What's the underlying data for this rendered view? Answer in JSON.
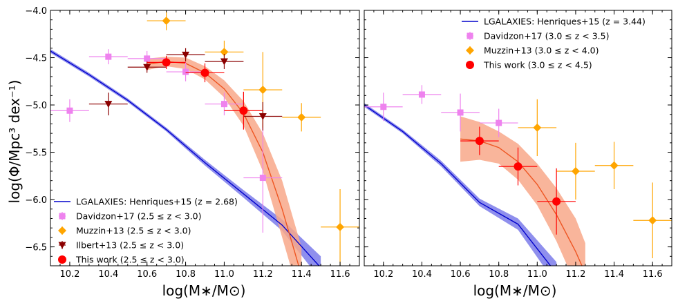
{
  "chart_data": {
    "type": "scatter",
    "ylabel": "log(Φ/Mpc³ dex⁻¹)",
    "panels": [
      {
        "name": "left",
        "xlabel": "log(M∗/M⊙)",
        "xlim": [
          10.1,
          11.7
        ],
        "ylim": [
          -6.7,
          -4.0
        ],
        "xticks": [
          10.2,
          10.4,
          10.6,
          10.8,
          11.0,
          11.2,
          11.4,
          11.6
        ],
        "xtick_labels": [
          "10.2",
          "10.4",
          "10.6",
          "10.8",
          "11.0",
          "11.2",
          "11.4",
          "11.6"
        ],
        "yticks": [
          -4.0,
          -4.5,
          -5.0,
          -5.5,
          -6.0,
          -6.5
        ],
        "ytick_labels": [
          "−4.0",
          "−4.5",
          "−5.0",
          "−5.5",
          "−6.0",
          "−6.5"
        ],
        "legend_position": "bottom-left",
        "model": {
          "name": "LGALAXIES: Henriques+15 (z = 2.68)",
          "color": "#0000cc",
          "band_color": "#7b7bea",
          "x": [
            10.1,
            10.3,
            10.5,
            10.7,
            10.9,
            11.1,
            11.3,
            11.5
          ],
          "y": [
            -4.43,
            -4.68,
            -4.95,
            -5.26,
            -5.61,
            -5.94,
            -6.27,
            -6.72
          ],
          "lo": [
            -4.45,
            -4.7,
            -4.97,
            -5.28,
            -5.64,
            -5.98,
            -6.33,
            -6.85
          ],
          "hi": [
            -4.41,
            -4.66,
            -4.93,
            -5.24,
            -5.58,
            -5.9,
            -6.21,
            -6.6
          ]
        },
        "fit": {
          "color": "#ee5522",
          "band_color": "#f8a88a",
          "x": [
            10.6,
            10.7,
            10.8,
            10.9,
            11.0,
            11.1,
            11.2,
            11.3,
            11.35,
            11.4
          ],
          "y": [
            -4.57,
            -4.54,
            -4.56,
            -4.66,
            -4.83,
            -5.09,
            -5.5,
            -6.1,
            -6.45,
            -6.8
          ],
          "lo": [
            -4.63,
            -4.59,
            -4.62,
            -4.73,
            -4.92,
            -5.22,
            -5.7,
            -6.4,
            -6.75,
            -7.1
          ],
          "hi": [
            -4.51,
            -4.49,
            -4.5,
            -4.59,
            -4.74,
            -4.96,
            -5.3,
            -5.8,
            -6.15,
            -6.5
          ]
        },
        "series": [
          {
            "name": "Davidzon+17 (2.5 ≤ z < 3.0)",
            "marker": "square",
            "color": "#ee82ee",
            "points": [
              {
                "x": 10.2,
                "y": -5.06,
                "xerr": 0.1,
                "yerr": 0.12
              },
              {
                "x": 10.4,
                "y": -4.49,
                "xerr": 0.1,
                "yerr": 0.08
              },
              {
                "x": 10.6,
                "y": -4.51,
                "xerr": 0.1,
                "yerr": 0.08
              },
              {
                "x": 10.8,
                "y": -4.65,
                "xerr": 0.1,
                "yerr": 0.1
              },
              {
                "x": 11.0,
                "y": -4.99,
                "xerr": 0.1,
                "yerr": 0.12
              },
              {
                "x": 11.2,
                "y": -5.77,
                "xerr": 0.1,
                "yerr": 0.58
              }
            ]
          },
          {
            "name": "Muzzin+13 (2.5 ≤ z < 3.0)",
            "marker": "diamond",
            "color": "#ffa500",
            "points": [
              {
                "x": 10.7,
                "y": -4.11,
                "xerr": 0.1,
                "yerr": 0.1
              },
              {
                "x": 11.0,
                "y": -4.44,
                "xerr": 0.1,
                "yerr": 0.12
              },
              {
                "x": 11.2,
                "y": -4.84,
                "xerr": 0.1,
                "yerr": 0.4
              },
              {
                "x": 11.4,
                "y": -5.13,
                "xerr": 0.1,
                "yerr": 0.15
              },
              {
                "x": 11.6,
                "y": -6.29,
                "xerr": 0.1,
                "yerr": 0.4
              }
            ]
          },
          {
            "name": "Ilbert+13 (2.5 ≤ z < 3.0)",
            "marker": "triangle-down",
            "color": "#8b0000",
            "points": [
              {
                "x": 10.4,
                "y": -4.99,
                "xerr": 0.1,
                "yerr": 0.12
              },
              {
                "x": 10.6,
                "y": -4.6,
                "xerr": 0.1,
                "yerr": 0.06
              },
              {
                "x": 10.8,
                "y": -4.47,
                "xerr": 0.1,
                "yerr": 0.07
              },
              {
                "x": 11.0,
                "y": -4.54,
                "xerr": 0.1,
                "yerr": 0.08
              },
              {
                "x": 11.2,
                "y": -5.12,
                "xerr": 0.1,
                "yerr": 0.15
              }
            ]
          },
          {
            "name": "This work (2.5 ≤ z < 3.0)",
            "marker": "circle",
            "color": "#ff0000",
            "points": [
              {
                "x": 10.7,
                "y": -4.55,
                "xerr": 0.1,
                "yerr": 0.07
              },
              {
                "x": 10.9,
                "y": -4.66,
                "xerr": 0.1,
                "yerr": 0.1
              },
              {
                "x": 11.1,
                "y": -5.06,
                "xerr": 0.1,
                "yerr": 0.2
              }
            ]
          }
        ]
      },
      {
        "name": "right",
        "xlabel": "log(M∗/M⊙)",
        "xlim": [
          10.1,
          11.7
        ],
        "ylim": [
          -6.7,
          -4.0
        ],
        "xticks": [
          10.2,
          10.4,
          10.6,
          10.8,
          11.0,
          11.2,
          11.4,
          11.6
        ],
        "xtick_labels": [
          "10.2",
          "10.4",
          "10.6",
          "10.8",
          "11.0",
          "11.2",
          "11.4",
          "11.6"
        ],
        "yticks": [
          -4.0,
          -4.5,
          -5.0,
          -5.5,
          -6.0,
          -6.5
        ],
        "ytick_labels": [
          "",
          "",
          "",
          "",
          "",
          ""
        ],
        "legend_position": "top-right",
        "model": {
          "name": "LGALAXIES: Henriques+15 (z = 3.44)",
          "color": "#0000cc",
          "band_color": "#7b7bea",
          "x": [
            10.1,
            10.3,
            10.5,
            10.7,
            10.9,
            11.1
          ],
          "y": [
            -5.0,
            -5.28,
            -5.62,
            -6.03,
            -6.26,
            -6.78
          ],
          "lo": [
            -5.02,
            -5.3,
            -5.65,
            -6.07,
            -6.32,
            -6.9
          ],
          "hi": [
            -4.98,
            -5.26,
            -5.59,
            -5.99,
            -6.2,
            -6.66
          ]
        },
        "fit": {
          "color": "#ee5522",
          "band_color": "#f8a88a",
          "x": [
            10.6,
            10.7,
            10.8,
            10.9,
            11.0,
            11.1,
            11.2,
            11.25
          ],
          "y": [
            -5.36,
            -5.38,
            -5.45,
            -5.6,
            -5.84,
            -6.16,
            -6.55,
            -6.78
          ],
          "lo": [
            -5.6,
            -5.58,
            -5.62,
            -5.79,
            -6.06,
            -6.44,
            -6.9,
            -7.1
          ],
          "hi": [
            -5.12,
            -5.18,
            -5.28,
            -5.41,
            -5.62,
            -5.88,
            -6.2,
            -6.46
          ]
        },
        "series": [
          {
            "name": "Davidzon+17 (3.0 ≤ z < 3.5)",
            "marker": "square",
            "color": "#ee82ee",
            "points": [
              {
                "x": 10.2,
                "y": -5.02,
                "xerr": 0.1,
                "yerr": 0.15
              },
              {
                "x": 10.4,
                "y": -4.89,
                "xerr": 0.1,
                "yerr": 0.1
              },
              {
                "x": 10.6,
                "y": -5.08,
                "xerr": 0.1,
                "yerr": 0.2
              },
              {
                "x": 10.8,
                "y": -5.19,
                "xerr": 0.1,
                "yerr": 0.15
              }
            ]
          },
          {
            "name": "Muzzin+13 (3.0 ≤ z < 4.0)",
            "marker": "diamond",
            "color": "#ffa500",
            "points": [
              {
                "x": 11.0,
                "y": -5.24,
                "xerr": 0.1,
                "yerr": 0.3
              },
              {
                "x": 11.2,
                "y": -5.7,
                "xerr": 0.1,
                "yerr": 0.3
              },
              {
                "x": 11.4,
                "y": -5.64,
                "xerr": 0.1,
                "yerr": 0.25
              },
              {
                "x": 11.6,
                "y": -6.22,
                "xerr": 0.1,
                "yerr": 0.4
              }
            ]
          },
          {
            "name": "This work (3.0 ≤ z < 4.5)",
            "marker": "circle",
            "color": "#ff0000",
            "points": [
              {
                "x": 10.7,
                "y": -5.38,
                "xerr": 0.1,
                "yerr": 0.15
              },
              {
                "x": 10.9,
                "y": -5.65,
                "xerr": 0.1,
                "yerr": 0.2
              },
              {
                "x": 11.1,
                "y": -6.02,
                "xerr": 0.1,
                "yerr": 0.35
              }
            ]
          }
        ]
      }
    ]
  }
}
